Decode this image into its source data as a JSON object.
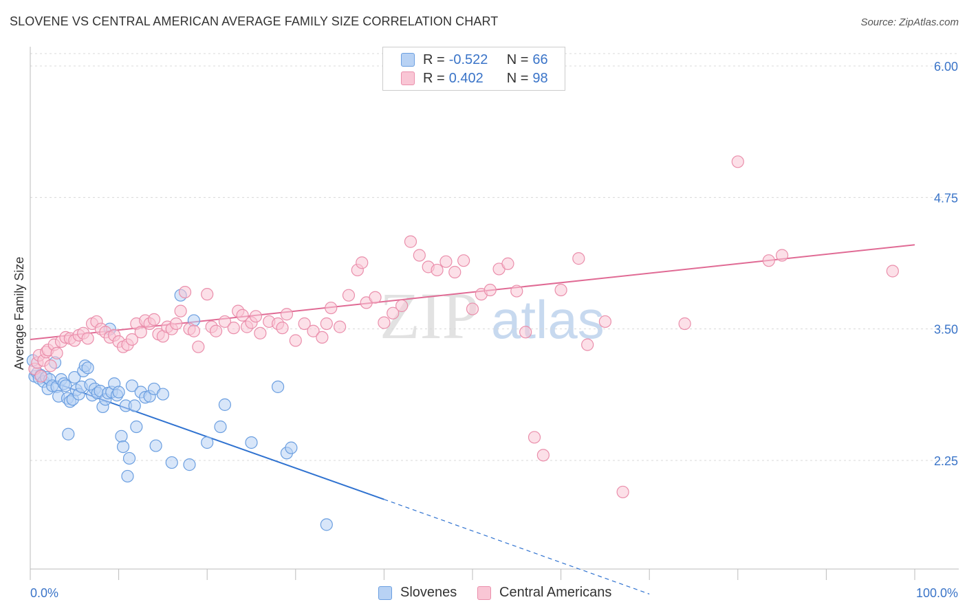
{
  "title": "SLOVENE VS CENTRAL AMERICAN AVERAGE FAMILY SIZE CORRELATION CHART",
  "source": "Source: ZipAtlas.com",
  "watermark": {
    "zip": "ZIP",
    "atlas": "atlas"
  },
  "legend": {
    "r_label": "R =",
    "n_label": "N =",
    "items": [
      {
        "name": "Slovenes",
        "r": "-0.522",
        "n": "66",
        "fill": "#b8d2f4",
        "stroke": "#6a9ee0"
      },
      {
        "name": "Central Americans",
        "r": "0.402",
        "n": "98",
        "fill": "#f9c6d5",
        "stroke": "#ea8eab"
      }
    ]
  },
  "chart_data": {
    "type": "scatter",
    "title": "SLOVENE VS CENTRAL AMERICAN AVERAGE FAMILY SIZE CORRELATION CHART",
    "xlabel": "",
    "ylabel": "Average Family Size",
    "xlim": [
      0,
      100
    ],
    "ylim": [
      1.0,
      6.2
    ],
    "x_tick_labels": [
      "0.0%",
      "100.0%"
    ],
    "y_ticks": [
      2.25,
      3.5,
      4.75,
      6.0
    ],
    "y_tick_labels": [
      "2.25",
      "3.50",
      "4.75",
      "6.00"
    ],
    "grid": true,
    "series": [
      {
        "name": "Slovenes",
        "color": "#6a9ee0",
        "fill": "#b8d2f4",
        "trend_color": "#2f72d0",
        "trend": {
          "x0": 0,
          "y0": 3.07,
          "x1": 40,
          "y1": 1.88,
          "dash_to_x": 70,
          "dash_to_y": 0.98
        },
        "points": [
          [
            0.3,
            3.2
          ],
          [
            0.5,
            3.05
          ],
          [
            0.8,
            3.08
          ],
          [
            1.0,
            3.03
          ],
          [
            1.2,
            3.06
          ],
          [
            1.5,
            3.0
          ],
          [
            1.8,
            3.04
          ],
          [
            2.0,
            2.93
          ],
          [
            2.2,
            3.02
          ],
          [
            2.5,
            2.96
          ],
          [
            2.8,
            3.18
          ],
          [
            3.0,
            2.95
          ],
          [
            3.2,
            2.86
          ],
          [
            3.5,
            3.02
          ],
          [
            3.8,
            2.98
          ],
          [
            4.0,
            2.96
          ],
          [
            4.2,
            2.84
          ],
          [
            4.5,
            2.81
          ],
          [
            4.8,
            2.83
          ],
          [
            5.0,
            3.04
          ],
          [
            5.2,
            2.92
          ],
          [
            5.5,
            2.88
          ],
          [
            5.8,
            2.95
          ],
          [
            6.0,
            3.1
          ],
          [
            6.2,
            3.15
          ],
          [
            6.5,
            3.13
          ],
          [
            6.8,
            2.97
          ],
          [
            7.0,
            2.87
          ],
          [
            7.3,
            2.93
          ],
          [
            7.6,
            2.89
          ],
          [
            7.9,
            2.91
          ],
          [
            8.2,
            2.76
          ],
          [
            8.5,
            2.83
          ],
          [
            8.8,
            2.89
          ],
          [
            9.0,
            3.5
          ],
          [
            9.2,
            2.9
          ],
          [
            9.5,
            2.98
          ],
          [
            9.8,
            2.87
          ],
          [
            10.0,
            2.9
          ],
          [
            10.3,
            2.48
          ],
          [
            10.5,
            2.38
          ],
          [
            10.8,
            2.77
          ],
          [
            11.0,
            2.1
          ],
          [
            11.2,
            2.27
          ],
          [
            11.5,
            2.96
          ],
          [
            11.8,
            2.77
          ],
          [
            12.0,
            2.57
          ],
          [
            12.5,
            2.9
          ],
          [
            13.0,
            2.85
          ],
          [
            13.5,
            2.86
          ],
          [
            14.0,
            2.93
          ],
          [
            14.2,
            2.39
          ],
          [
            15.0,
            2.88
          ],
          [
            16.0,
            2.23
          ],
          [
            17.0,
            3.82
          ],
          [
            18.0,
            2.21
          ],
          [
            18.5,
            3.58
          ],
          [
            20.0,
            2.42
          ],
          [
            21.5,
            2.57
          ],
          [
            22.0,
            2.78
          ],
          [
            25.0,
            2.42
          ],
          [
            28.0,
            2.95
          ],
          [
            29.0,
            2.32
          ],
          [
            29.5,
            2.37
          ],
          [
            33.5,
            1.64
          ],
          [
            4.3,
            2.5
          ]
        ]
      },
      {
        "name": "Central Americans",
        "color": "#ea8eab",
        "fill": "#f9c6d5",
        "trend_color": "#e06a94",
        "trend": {
          "x0": 0,
          "y0": 3.4,
          "x1": 100,
          "y1": 4.3
        },
        "points": [
          [
            0.5,
            3.12
          ],
          [
            0.8,
            3.18
          ],
          [
            1.0,
            3.25
          ],
          [
            1.2,
            3.05
          ],
          [
            1.5,
            3.2
          ],
          [
            1.8,
            3.28
          ],
          [
            2.0,
            3.3
          ],
          [
            2.3,
            3.15
          ],
          [
            2.7,
            3.35
          ],
          [
            3.0,
            3.27
          ],
          [
            3.5,
            3.38
          ],
          [
            4.0,
            3.42
          ],
          [
            4.5,
            3.41
          ],
          [
            5.0,
            3.39
          ],
          [
            5.5,
            3.44
          ],
          [
            6.0,
            3.46
          ],
          [
            6.5,
            3.41
          ],
          [
            7.0,
            3.55
          ],
          [
            7.5,
            3.57
          ],
          [
            8.0,
            3.5
          ],
          [
            8.5,
            3.47
          ],
          [
            9.0,
            3.42
          ],
          [
            9.5,
            3.44
          ],
          [
            10.0,
            3.38
          ],
          [
            10.5,
            3.33
          ],
          [
            11.0,
            3.35
          ],
          [
            11.5,
            3.4
          ],
          [
            12.0,
            3.55
          ],
          [
            12.5,
            3.47
          ],
          [
            13.0,
            3.58
          ],
          [
            13.5,
            3.55
          ],
          [
            14.0,
            3.59
          ],
          [
            14.5,
            3.45
          ],
          [
            15.0,
            3.43
          ],
          [
            15.5,
            3.52
          ],
          [
            16.0,
            3.5
          ],
          [
            16.5,
            3.55
          ],
          [
            17.0,
            3.67
          ],
          [
            17.5,
            3.85
          ],
          [
            18.0,
            3.5
          ],
          [
            18.5,
            3.48
          ],
          [
            19.0,
            3.33
          ],
          [
            20.0,
            3.83
          ],
          [
            20.5,
            3.52
          ],
          [
            21.0,
            3.48
          ],
          [
            22.0,
            3.57
          ],
          [
            23.0,
            3.51
          ],
          [
            23.5,
            3.67
          ],
          [
            24.0,
            3.63
          ],
          [
            24.5,
            3.52
          ],
          [
            25.0,
            3.56
          ],
          [
            25.5,
            3.62
          ],
          [
            26.0,
            3.46
          ],
          [
            27.0,
            3.57
          ],
          [
            28.0,
            3.55
          ],
          [
            28.5,
            3.51
          ],
          [
            29.0,
            3.64
          ],
          [
            30.0,
            3.39
          ],
          [
            31.0,
            3.55
          ],
          [
            32.0,
            3.48
          ],
          [
            33.0,
            3.42
          ],
          [
            33.5,
            3.55
          ],
          [
            34.0,
            3.7
          ],
          [
            35.0,
            3.52
          ],
          [
            36.0,
            3.82
          ],
          [
            37.0,
            4.06
          ],
          [
            37.5,
            4.13
          ],
          [
            38.0,
            3.75
          ],
          [
            39.0,
            3.8
          ],
          [
            40.0,
            3.56
          ],
          [
            41.0,
            3.65
          ],
          [
            42.0,
            3.72
          ],
          [
            43.0,
            4.33
          ],
          [
            44.0,
            4.2
          ],
          [
            45.0,
            4.09
          ],
          [
            46.0,
            4.06
          ],
          [
            47.0,
            4.14
          ],
          [
            48.0,
            4.04
          ],
          [
            49.0,
            4.15
          ],
          [
            50.0,
            3.69
          ],
          [
            51.0,
            3.83
          ],
          [
            52.0,
            3.87
          ],
          [
            53.0,
            4.07
          ],
          [
            54.0,
            4.12
          ],
          [
            55.0,
            3.86
          ],
          [
            56.0,
            3.47
          ],
          [
            57.0,
            2.47
          ],
          [
            58.0,
            2.3
          ],
          [
            60.0,
            3.87
          ],
          [
            62.0,
            4.17
          ],
          [
            63.0,
            3.35
          ],
          [
            65.0,
            3.57
          ],
          [
            67.0,
            1.95
          ],
          [
            74.0,
            3.55
          ],
          [
            80.0,
            5.09
          ],
          [
            83.5,
            4.15
          ],
          [
            85.0,
            4.2
          ],
          [
            97.5,
            4.05
          ]
        ]
      }
    ]
  }
}
